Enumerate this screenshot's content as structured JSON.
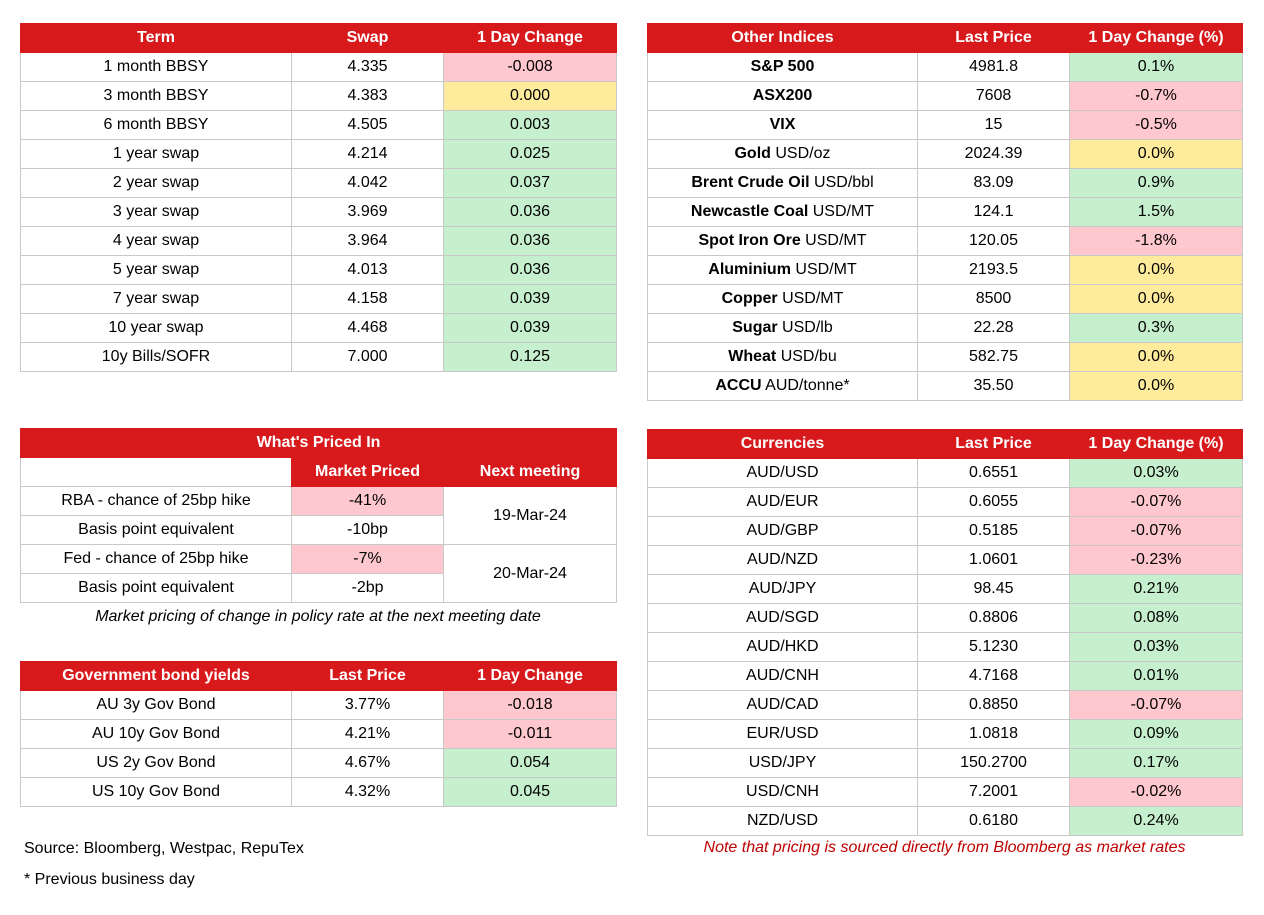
{
  "swap_table": {
    "headers": [
      "Term",
      "Swap",
      "1 Day Change"
    ],
    "rows": [
      {
        "term": "1 month BBSY",
        "swap": "4.335",
        "change": "-0.008"
      },
      {
        "term": "3 month BBSY",
        "swap": "4.383",
        "change": "0.000"
      },
      {
        "term": "6 month BBSY",
        "swap": "4.505",
        "change": "0.003"
      },
      {
        "term": "1 year swap",
        "swap": "4.214",
        "change": "0.025"
      },
      {
        "term": "2 year swap",
        "swap": "4.042",
        "change": "0.037"
      },
      {
        "term": "3 year swap",
        "swap": "3.969",
        "change": "0.036"
      },
      {
        "term": "4 year swap",
        "swap": "3.964",
        "change": "0.036"
      },
      {
        "term": "5 year swap",
        "swap": "4.013",
        "change": "0.036"
      },
      {
        "term": "7 year swap",
        "swap": "4.158",
        "change": "0.039"
      },
      {
        "term": "10 year swap",
        "swap": "4.468",
        "change": "0.039"
      },
      {
        "term": "10y Bills/SOFR",
        "swap": "7.000",
        "change": "0.125"
      }
    ]
  },
  "indices_table": {
    "headers": [
      "Other Indices",
      "Last Price",
      "1 Day Change (%)"
    ],
    "rows": [
      {
        "name": "S&P 500",
        "unit": "",
        "price": "4981.8",
        "change": "0.1%"
      },
      {
        "name": "ASX200",
        "unit": "",
        "price": "7608",
        "change": "-0.7%"
      },
      {
        "name": "VIX",
        "unit": "",
        "price": "15",
        "change": "-0.5%"
      },
      {
        "name": "Gold",
        "unit": "USD/oz",
        "price": "2024.39",
        "change": "0.0%"
      },
      {
        "name": "Brent Crude Oil",
        "unit": "USD/bbl",
        "price": "83.09",
        "change": "0.9%"
      },
      {
        "name": "Newcastle Coal",
        "unit": "USD/MT",
        "price": "124.1",
        "change": "1.5%"
      },
      {
        "name": "Spot Iron Ore",
        "unit": "USD/MT",
        "price": "120.05",
        "change": "-1.8%"
      },
      {
        "name": "Aluminium",
        "unit": "USD/MT",
        "price": "2193.5",
        "change": "0.0%"
      },
      {
        "name": "Copper",
        "unit": "USD/MT",
        "price": "8500",
        "change": "0.0%"
      },
      {
        "name": "Sugar",
        "unit": "USD/lb",
        "price": "22.28",
        "change": "0.3%"
      },
      {
        "name": "Wheat",
        "unit": "USD/bu",
        "price": "582.75",
        "change": "0.0%"
      },
      {
        "name": "ACCU",
        "unit": "AUD/tonne*",
        "price": "35.50",
        "change": "0.0%"
      }
    ]
  },
  "priced_in": {
    "title": "What's Priced In",
    "col_market": "Market Priced",
    "col_meeting": "Next meeting",
    "rows": [
      {
        "label": "RBA - chance of 25bp hike",
        "value": "-41%"
      },
      {
        "label": "Basis point equivalent",
        "value": "-10bp"
      },
      {
        "label": "Fed - chance of 25bp hike",
        "value": "-7%"
      },
      {
        "label": "Basis point equivalent",
        "value": "-2bp"
      }
    ],
    "meetings": [
      "19-Mar-24",
      "20-Mar-24"
    ],
    "note": "Market pricing of change in policy rate at the next meeting date"
  },
  "bond_table": {
    "headers": [
      "Government bond yields",
      "Last Price",
      "1 Day Change"
    ],
    "rows": [
      {
        "name": "AU 3y Gov Bond",
        "price": "3.77%",
        "change": "-0.018"
      },
      {
        "name": "AU 10y Gov Bond",
        "price": "4.21%",
        "change": "-0.011"
      },
      {
        "name": "US 2y Gov Bond",
        "price": "4.67%",
        "change": "0.054"
      },
      {
        "name": "US 10y Gov Bond",
        "price": "4.32%",
        "change": "0.045"
      }
    ]
  },
  "currency_table": {
    "headers": [
      "Currencies",
      "Last Price",
      "1 Day Change (%)"
    ],
    "rows": [
      {
        "pair": "AUD/USD",
        "price": "0.6551",
        "change": "0.03%"
      },
      {
        "pair": "AUD/EUR",
        "price": "0.6055",
        "change": "-0.07%"
      },
      {
        "pair": "AUD/GBP",
        "price": "0.5185",
        "change": "-0.07%"
      },
      {
        "pair": "AUD/NZD",
        "price": "1.0601",
        "change": "-0.23%"
      },
      {
        "pair": "AUD/JPY",
        "price": "98.45",
        "change": "0.21%"
      },
      {
        "pair": "AUD/SGD",
        "price": "0.8806",
        "change": "0.08%"
      },
      {
        "pair": "AUD/HKD",
        "price": "5.1230",
        "change": "0.03%"
      },
      {
        "pair": "AUD/CNH",
        "price": "4.7168",
        "change": "0.01%"
      },
      {
        "pair": "AUD/CAD",
        "price": "0.8850",
        "change": "-0.07%"
      },
      {
        "pair": "EUR/USD",
        "price": "1.0818",
        "change": "0.09%"
      },
      {
        "pair": "USD/JPY",
        "price": "150.2700",
        "change": "0.17%"
      },
      {
        "pair": "USD/CNH",
        "price": "7.2001",
        "change": "-0.02%"
      },
      {
        "pair": "NZD/USD",
        "price": "0.6180",
        "change": "0.24%"
      }
    ],
    "note": "Note that pricing is sourced directly from Bloomberg as market rates"
  },
  "footer": {
    "source": "Source: Bloomberg, Westpac, RepuTex",
    "prev_day": "* Previous business day"
  },
  "colors": {
    "header_red": "#d7191c",
    "negative_fill": "#ffc7ce",
    "positive_fill": "#c6efce",
    "zero_fill": "#ffeb9c",
    "note_red": "#c00000"
  }
}
